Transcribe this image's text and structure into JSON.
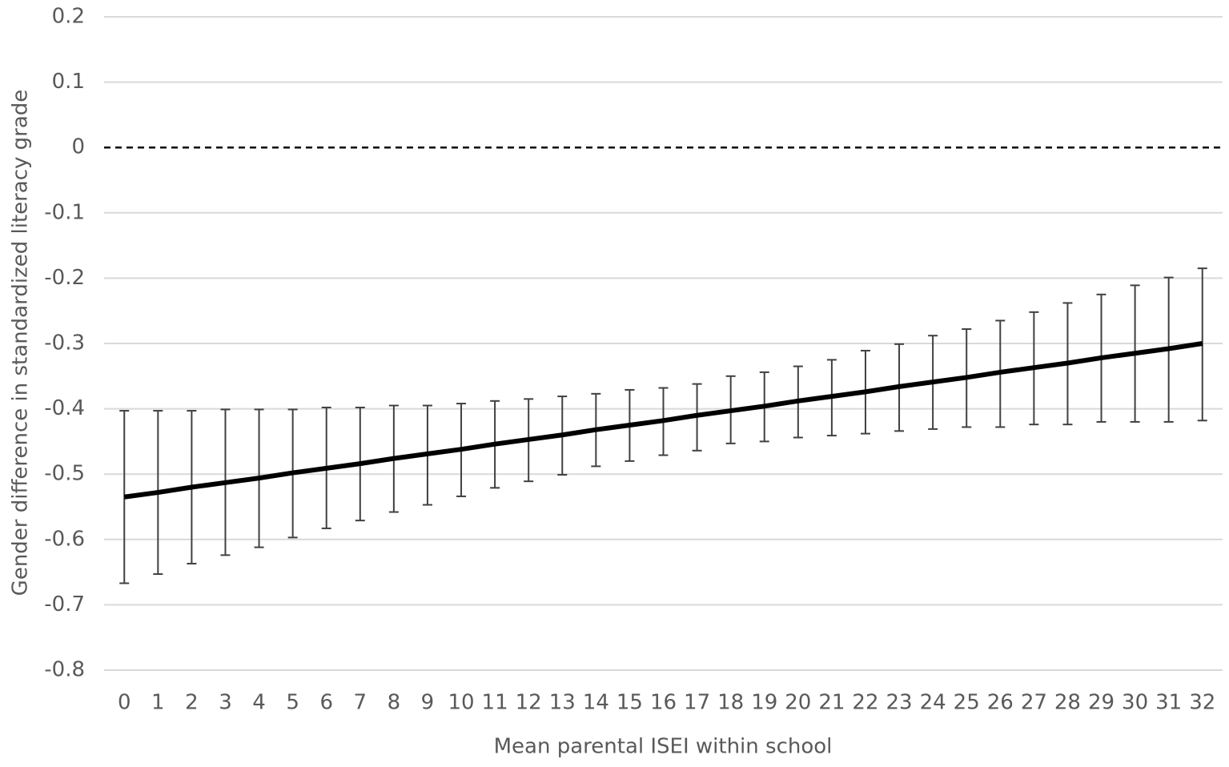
{
  "chart_data": {
    "type": "line",
    "x_label": "Mean parental ISEI within school",
    "y_label": "Gender  difference in standardized literacy grade",
    "x": [
      0,
      1,
      2,
      3,
      4,
      5,
      6,
      7,
      8,
      9,
      10,
      11,
      12,
      13,
      14,
      15,
      16,
      17,
      18,
      19,
      20,
      21,
      22,
      23,
      24,
      25,
      26,
      27,
      28,
      29,
      30,
      31,
      32
    ],
    "series": [
      {
        "color": "#000000",
        "values": [
          -0.535,
          -0.528,
          -0.52,
          -0.513,
          -0.506,
          -0.498,
          -0.491,
          -0.484,
          -0.476,
          -0.469,
          -0.462,
          -0.454,
          -0.447,
          -0.44,
          -0.432,
          -0.425,
          -0.418,
          -0.41,
          -0.403,
          -0.396,
          -0.388,
          -0.381,
          -0.374,
          -0.366,
          -0.359,
          -0.352,
          -0.344,
          -0.337,
          -0.33,
          -0.322,
          -0.315,
          -0.308,
          -0.3
        ],
        "lower": [
          -0.667,
          -0.653,
          -0.637,
          -0.624,
          -0.612,
          -0.597,
          -0.583,
          -0.571,
          -0.558,
          -0.547,
          -0.534,
          -0.521,
          -0.511,
          -0.501,
          -0.488,
          -0.48,
          -0.471,
          -0.464,
          -0.453,
          -0.45,
          -0.444,
          -0.441,
          -0.438,
          -0.434,
          -0.431,
          -0.428,
          -0.428,
          -0.424,
          -0.424,
          -0.42,
          -0.42,
          -0.42,
          -0.418
        ],
        "upper": [
          -0.403,
          -0.403,
          -0.403,
          -0.401,
          -0.401,
          -0.401,
          -0.398,
          -0.398,
          -0.395,
          -0.395,
          -0.392,
          -0.388,
          -0.385,
          -0.381,
          -0.377,
          -0.371,
          -0.368,
          -0.362,
          -0.35,
          -0.344,
          -0.335,
          -0.325,
          -0.311,
          -0.301,
          -0.288,
          -0.278,
          -0.265,
          -0.252,
          -0.238,
          -0.225,
          -0.211,
          -0.199,
          -0.185
        ],
        "error_color": "#404040"
      }
    ],
    "xlim": [
      -0.6,
      32.6
    ],
    "xticks": [
      0,
      1,
      2,
      3,
      4,
      5,
      6,
      7,
      8,
      9,
      10,
      11,
      12,
      13,
      14,
      15,
      16,
      17,
      18,
      19,
      20,
      21,
      22,
      23,
      24,
      25,
      26,
      27,
      28,
      29,
      30,
      31,
      32
    ],
    "ylim": [
      -0.8,
      0.2
    ],
    "yticks": [
      -0.8,
      -0.7,
      -0.6,
      -0.5,
      -0.4,
      -0.3,
      -0.2,
      -0.1,
      0,
      0.1,
      0.2
    ],
    "grid": true,
    "dashed_gridline": 0
  }
}
